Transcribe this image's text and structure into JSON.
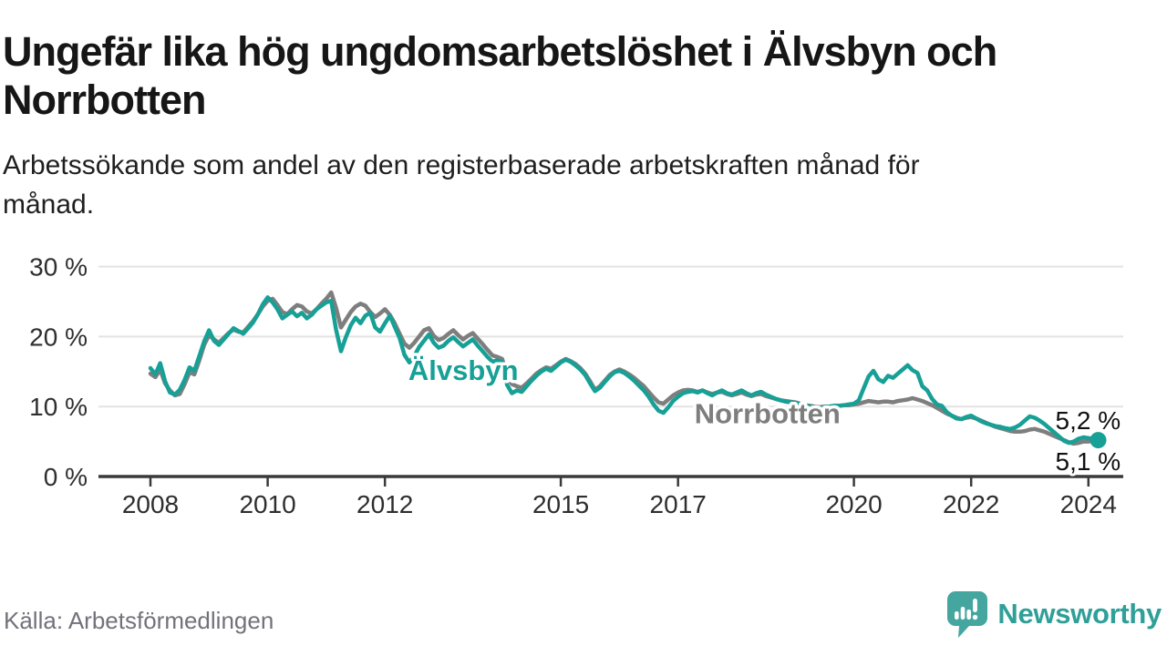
{
  "header": {
    "title": "Ungefär lika hög ungdomsarbetslöshet i Älvsbyn och Norrbotten",
    "subtitle": "Arbetssökande som andel av den registerbaserade arbetskraften månad för månad."
  },
  "footer": {
    "source": "Källa: Arbetsförmedlingen",
    "logo_text": "Newsworthy"
  },
  "colors": {
    "alvsbyn_teal": "#17a096",
    "norrbotten_gray": "#7e7e7e",
    "logo_teal": "#45a6a0",
    "grid": "#e3e3e3",
    "axis": "#3a3a3a",
    "tick_label": "#2e2e2e",
    "end_label": "#111111"
  },
  "chart_data": {
    "type": "line",
    "title": "Ungefär lika hög ungdomsarbetslöshet i Älvsbyn och Norrbotten",
    "subtitle": "Arbetssökande som andel av den registerbaserade arbetskraften månad för månad.",
    "x_unit": "monthly, Jan 2008 – Mar 2024",
    "xlim": [
      2007.1,
      2024.6
    ],
    "ylim": [
      0,
      31
    ],
    "grid": "horizontal",
    "legend": "inline-labels",
    "yticks": [
      {
        "value": 0,
        "label": "0 %"
      },
      {
        "value": 10,
        "label": "10 %"
      },
      {
        "value": 20,
        "label": "20 %"
      },
      {
        "value": 30,
        "label": "30 %"
      }
    ],
    "xticks": [
      {
        "value": 2008,
        "label": "2008"
      },
      {
        "value": 2010,
        "label": "2010"
      },
      {
        "value": 2012,
        "label": "2012"
      },
      {
        "value": 2015,
        "label": "2015"
      },
      {
        "value": 2017,
        "label": "2017"
      },
      {
        "value": 2020,
        "label": "2020"
      },
      {
        "value": 2022,
        "label": "2022"
      },
      {
        "value": 2024,
        "label": "2024"
      }
    ],
    "series": [
      {
        "name": "Norrbotten",
        "color": "#7e7e7e",
        "start": "2008-01",
        "frequency": "monthly",
        "values": [
          14.7,
          14.2,
          15.3,
          13.3,
          12.3,
          11.6,
          11.8,
          13.2,
          14.9,
          14.6,
          16.6,
          18.8,
          20.2,
          19.6,
          19.1,
          19.8,
          20.5,
          21.0,
          20.7,
          20.6,
          21.4,
          22.2,
          23.2,
          24.3,
          25.1,
          25.4,
          24.5,
          23.5,
          23.2,
          23.9,
          24.5,
          24.3,
          23.6,
          23.3,
          23.9,
          24.7,
          25.4,
          26.3,
          24.1,
          21.3,
          22.4,
          23.5,
          24.3,
          24.7,
          24.4,
          23.5,
          22.8,
          23.3,
          23.9,
          23.1,
          21.9,
          20.4,
          19.0,
          18.4,
          19.1,
          20.0,
          20.9,
          21.2,
          20.1,
          19.5,
          19.8,
          20.4,
          20.9,
          20.2,
          19.6,
          20.1,
          20.5,
          19.7,
          18.9,
          18.1,
          17.3,
          17.1,
          16.8,
          14.4,
          13.2,
          12.9,
          12.7,
          13.3,
          14.0,
          14.7,
          15.2,
          15.6,
          15.4,
          15.9,
          16.4,
          16.8,
          16.5,
          16.1,
          15.5,
          14.7,
          13.6,
          12.4,
          12.9,
          13.7,
          14.5,
          15.0,
          15.3,
          15.0,
          14.6,
          14.1,
          13.5,
          12.9,
          12.1,
          11.3,
          10.6,
          10.4,
          11.0,
          11.6,
          12.0,
          12.3,
          12.4,
          12.3,
          12.1,
          12.3,
          12.0,
          11.8,
          12.0,
          12.1,
          11.8,
          11.6,
          11.8,
          12.0,
          11.7,
          11.5,
          11.7,
          11.8,
          11.5,
          11.3,
          11.1,
          10.9,
          10.8,
          10.7,
          10.6,
          10.4,
          10.2,
          10.1,
          10.0,
          9.9,
          10.0,
          10.0,
          10.1,
          10.1,
          10.2,
          10.2,
          10.3,
          10.4,
          10.6,
          10.8,
          10.7,
          10.6,
          10.7,
          10.7,
          10.6,
          10.8,
          10.9,
          11.0,
          11.2,
          11.0,
          10.8,
          10.5,
          10.2,
          9.8,
          9.4,
          9.0,
          8.7,
          8.4,
          8.2,
          8.4,
          8.5,
          8.3,
          8.0,
          7.7,
          7.4,
          7.1,
          6.9,
          6.7,
          6.5,
          6.4,
          6.4,
          6.5,
          6.7,
          6.8,
          6.6,
          6.4,
          6.1,
          5.8,
          5.5,
          5.2,
          4.9,
          4.7,
          4.8,
          5.0,
          5.0,
          5.1,
          5.1
        ]
      },
      {
        "name": "Älvsbyn",
        "color": "#17a096",
        "start": "2008-01",
        "frequency": "monthly",
        "values": [
          15.5,
          14.6,
          16.2,
          13.6,
          12.0,
          11.7,
          12.4,
          13.8,
          15.6,
          15.1,
          17.2,
          19.3,
          20.9,
          19.4,
          18.8,
          19.6,
          20.4,
          21.2,
          20.8,
          20.4,
          21.2,
          22.0,
          23.2,
          24.6,
          25.6,
          24.9,
          23.9,
          22.6,
          23.1,
          23.6,
          22.9,
          23.4,
          22.6,
          23.1,
          23.9,
          24.4,
          24.9,
          25.1,
          21.0,
          17.9,
          19.9,
          21.6,
          22.7,
          21.9,
          23.0,
          23.4,
          21.3,
          20.7,
          21.9,
          23.0,
          21.4,
          19.8,
          17.4,
          16.3,
          17.2,
          18.5,
          19.4,
          20.3,
          19.1,
          18.4,
          18.7,
          19.4,
          19.9,
          19.2,
          18.6,
          19.1,
          19.6,
          18.7,
          17.9,
          17.1,
          16.4,
          16.6,
          16.4,
          13.1,
          11.9,
          12.3,
          12.1,
          12.9,
          13.7,
          14.4,
          15.0,
          15.4,
          15.1,
          15.7,
          16.3,
          16.7,
          16.4,
          15.9,
          15.3,
          14.5,
          13.3,
          12.2,
          12.7,
          13.5,
          14.3,
          14.9,
          15.1,
          14.8,
          14.3,
          13.7,
          13.0,
          12.3,
          11.4,
          10.3,
          9.4,
          9.1,
          9.9,
          10.8,
          11.4,
          11.9,
          12.1,
          12.2,
          12.0,
          12.3,
          11.9,
          11.6,
          12.0,
          12.3,
          11.9,
          11.7,
          12.0,
          12.3,
          11.9,
          11.6,
          11.9,
          12.1,
          11.7,
          11.4,
          11.1,
          10.9,
          10.7,
          10.6,
          10.5,
          10.3,
          10.1,
          10.0,
          9.9,
          9.8,
          9.9,
          10.0,
          10.1,
          10.1,
          10.2,
          10.3,
          10.4,
          10.9,
          12.6,
          14.3,
          15.1,
          13.9,
          13.5,
          14.4,
          14.1,
          14.7,
          15.3,
          15.9,
          15.2,
          14.8,
          12.9,
          12.3,
          11.1,
          10.3,
          10.1,
          9.2,
          8.7,
          8.3,
          8.2,
          8.5,
          8.7,
          8.3,
          7.9,
          7.6,
          7.4,
          7.2,
          7.1,
          6.9,
          6.8,
          7.0,
          7.4,
          8.0,
          8.6,
          8.4,
          8.0,
          7.5,
          6.9,
          6.3,
          5.7,
          5.1,
          4.8,
          5.0,
          5.4,
          5.6,
          5.5,
          5.4,
          5.2
        ]
      }
    ],
    "series_labels": [
      {
        "text": "Älvsbyn",
        "color": "#17a096",
        "x_year": 2012.4,
        "y_value": 13.8
      },
      {
        "text": "Norrbotten",
        "color": "#7e7e7e",
        "x_year": 2017.28,
        "y_value": 7.6
      }
    ],
    "end_labels": [
      {
        "text": "5,2 %",
        "x_year": 2024.55,
        "y_value": 6.8
      },
      {
        "text": "5,1 %",
        "x_year": 2024.55,
        "y_value": 0.9
      }
    ],
    "end_dot": {
      "series": "Älvsbyn",
      "value": 5.2
    }
  }
}
